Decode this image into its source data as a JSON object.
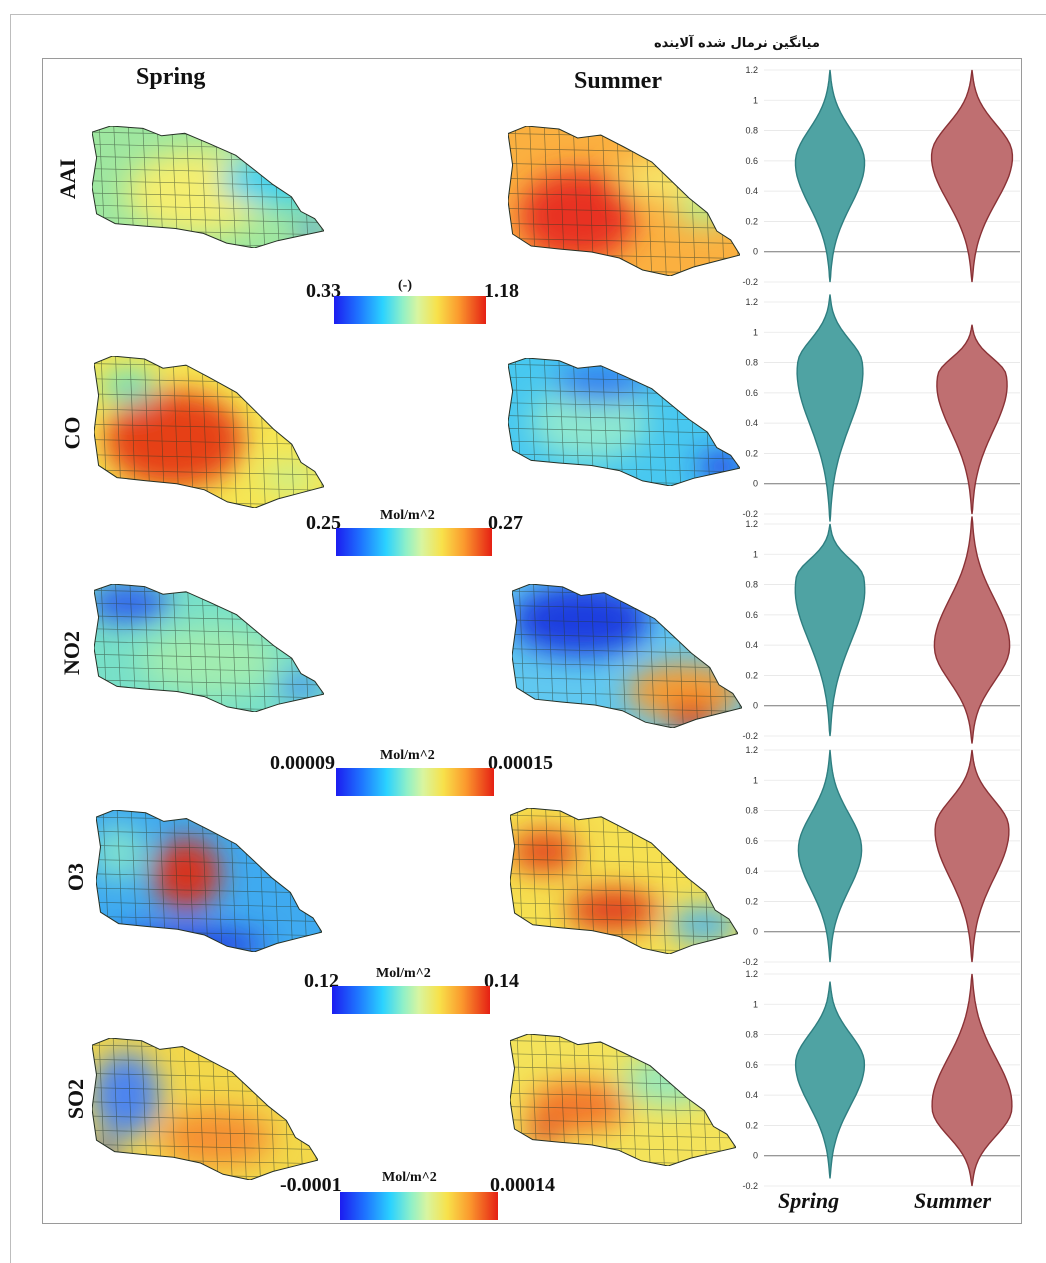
{
  "chart_data": {
    "type": "violin",
    "title": "میانگین نرمال شده آلاینده",
    "seasons": [
      "Spring",
      "Summer"
    ],
    "x_labels": [
      "Spring",
      "Summer"
    ],
    "y_ticks": [
      "1.2",
      "1",
      "0.8",
      "0.6",
      "0.4",
      "0.2",
      "0",
      "-0.2"
    ],
    "ylim": [
      -0.2,
      1.2
    ],
    "colors": {
      "spring_fill": "#4fa3a3",
      "spring_stroke": "#2f7e80",
      "summer_fill": "#bf6f71",
      "summer_stroke": "#8a3236"
    },
    "rows": [
      {
        "pollutant": "AAI",
        "scale_min": "0.33",
        "scale_max": "1.18",
        "unit": "(-)",
        "spring_map": {
          "base": "#9ee7a0",
          "blobs": [
            {
              "cx": 0.45,
              "cy": 0.55,
              "rx": 0.3,
              "ry": 0.35,
              "c": "#f4ee70"
            },
            {
              "cx": 0.8,
              "cy": 0.45,
              "rx": 0.25,
              "ry": 0.2,
              "c": "#3fd2f0"
            },
            {
              "cx": 0.95,
              "cy": 0.85,
              "rx": 0.06,
              "ry": 0.06,
              "c": "#2060ff"
            }
          ]
        },
        "summer_map": {
          "base": "#fbb040",
          "blobs": [
            {
              "cx": 0.3,
              "cy": 0.6,
              "rx": 0.25,
              "ry": 0.3,
              "c": "#e83020"
            },
            {
              "cx": 0.7,
              "cy": 0.35,
              "rx": 0.22,
              "ry": 0.15,
              "c": "#f7e468"
            },
            {
              "cx": 0.85,
              "cy": 0.55,
              "rx": 0.12,
              "ry": 0.12,
              "c": "#b8ef8c"
            }
          ]
        },
        "spring": {
          "min": -0.2,
          "max": 1.2,
          "mode": 0.6,
          "width": 0.55
        },
        "summer": {
          "min": -0.2,
          "max": 1.2,
          "mode": 0.65,
          "width": 0.65
        }
      },
      {
        "pollutant": "CO",
        "scale_min": "0.25",
        "scale_max": "0.27",
        "unit": "Mol/m^2",
        "spring_map": {
          "base": "#f6e653",
          "blobs": [
            {
              "cx": 0.35,
              "cy": 0.55,
              "rx": 0.3,
              "ry": 0.32,
              "c": "#e64019"
            },
            {
              "cx": 0.15,
              "cy": 0.2,
              "rx": 0.12,
              "ry": 0.12,
              "c": "#6ee0c0"
            },
            {
              "cx": 0.85,
              "cy": 0.8,
              "rx": 0.12,
              "ry": 0.1,
              "c": "#c9f08c"
            }
          ]
        },
        "summer_map": {
          "base": "#48c8f0",
          "blobs": [
            {
              "cx": 0.35,
              "cy": 0.5,
              "rx": 0.25,
              "ry": 0.3,
              "c": "#8ee8d0"
            },
            {
              "cx": 0.4,
              "cy": 0.2,
              "rx": 0.2,
              "ry": 0.15,
              "c": "#2f7cf0"
            },
            {
              "cx": 0.92,
              "cy": 0.85,
              "rx": 0.1,
              "ry": 0.1,
              "c": "#1c2ce8"
            }
          ]
        },
        "spring": {
          "min": -0.25,
          "max": 1.25,
          "mode": 0.8,
          "width": 0.55
        },
        "summer": {
          "min": -0.2,
          "max": 1.05,
          "mode": 0.72,
          "width": 0.6
        }
      },
      {
        "pollutant": "NO2",
        "scale_min": "0.00009",
        "scale_max": "0.00015",
        "unit": "Mol/m^2",
        "spring_map": {
          "base": "#78e0c8",
          "blobs": [
            {
              "cx": 0.15,
              "cy": 0.15,
              "rx": 0.18,
              "ry": 0.15,
              "c": "#2a5cf0"
            },
            {
              "cx": 0.5,
              "cy": 0.6,
              "rx": 0.3,
              "ry": 0.28,
              "c": "#a0ecb0"
            },
            {
              "cx": 0.9,
              "cy": 0.8,
              "rx": 0.1,
              "ry": 0.1,
              "c": "#3f8cf5"
            }
          ]
        },
        "summer_map": {
          "base": "#60c8f0",
          "blobs": [
            {
              "cx": 0.3,
              "cy": 0.25,
              "rx": 0.3,
              "ry": 0.25,
              "c": "#1e3ee0"
            },
            {
              "cx": 0.75,
              "cy": 0.75,
              "rx": 0.25,
              "ry": 0.2,
              "c": "#f89c30"
            },
            {
              "cx": 0.78,
              "cy": 0.92,
              "rx": 0.1,
              "ry": 0.1,
              "c": "#e02010"
            }
          ]
        },
        "spring": {
          "min": -0.2,
          "max": 1.2,
          "mode": 0.85,
          "width": 0.6
        },
        "summer": {
          "min": -0.25,
          "max": 1.25,
          "mode": 0.38,
          "width": 0.6
        }
      },
      {
        "pollutant": "O3",
        "scale_min": "0.12",
        "scale_max": "0.14",
        "unit": "Mol/m^2",
        "spring_map": {
          "base": "#3faaf0",
          "blobs": [
            {
              "cx": 0.4,
              "cy": 0.45,
              "rx": 0.15,
              "ry": 0.25,
              "c": "#d8301a"
            },
            {
              "cx": 0.1,
              "cy": 0.3,
              "rx": 0.12,
              "ry": 0.2,
              "c": "#7ee0d0"
            },
            {
              "cx": 0.4,
              "cy": 0.95,
              "rx": 0.35,
              "ry": 0.12,
              "c": "#2040e0"
            }
          ]
        },
        "summer_map": {
          "base": "#f6e050",
          "blobs": [
            {
              "cx": 0.15,
              "cy": 0.3,
              "rx": 0.15,
              "ry": 0.15,
              "c": "#e44b1c"
            },
            {
              "cx": 0.45,
              "cy": 0.7,
              "rx": 0.2,
              "ry": 0.15,
              "c": "#e0401a"
            },
            {
              "cx": 0.85,
              "cy": 0.8,
              "rx": 0.15,
              "ry": 0.12,
              "c": "#4ab4f0"
            }
          ]
        },
        "spring": {
          "min": -0.2,
          "max": 1.2,
          "mode": 0.55,
          "width": 0.5
        },
        "summer": {
          "min": -0.2,
          "max": 1.2,
          "mode": 0.7,
          "width": 0.6
        }
      },
      {
        "pollutant": "SO2",
        "scale_min": "-0.0001",
        "scale_max": "0.00014",
        "unit": "Mol/m^2",
        "spring_map": {
          "base": "#f3d84a",
          "blobs": [
            {
              "cx": 0.15,
              "cy": 0.4,
              "rx": 0.15,
              "ry": 0.3,
              "c": "#4c84f0"
            },
            {
              "cx": 0.55,
              "cy": 0.7,
              "rx": 0.25,
              "ry": 0.2,
              "c": "#f69030"
            },
            {
              "cx": 0.05,
              "cy": 0.8,
              "rx": 0.06,
              "ry": 0.08,
              "c": "#1c30e0"
            }
          ]
        },
        "summer_map": {
          "base": "#f4e35a",
          "blobs": [
            {
              "cx": 0.3,
              "cy": 0.55,
              "rx": 0.22,
              "ry": 0.2,
              "c": "#f3782a"
            },
            {
              "cx": 0.7,
              "cy": 0.35,
              "rx": 0.2,
              "ry": 0.2,
              "c": "#9ae8b8"
            },
            {
              "cx": 0.15,
              "cy": 0.75,
              "rx": 0.08,
              "ry": 0.08,
              "c": "#d82020"
            }
          ]
        },
        "spring": {
          "min": -0.15,
          "max": 1.15,
          "mode": 0.62,
          "width": 0.55
        },
        "summer": {
          "min": -0.2,
          "max": 1.2,
          "mode": 0.3,
          "width": 0.65
        }
      }
    ]
  }
}
